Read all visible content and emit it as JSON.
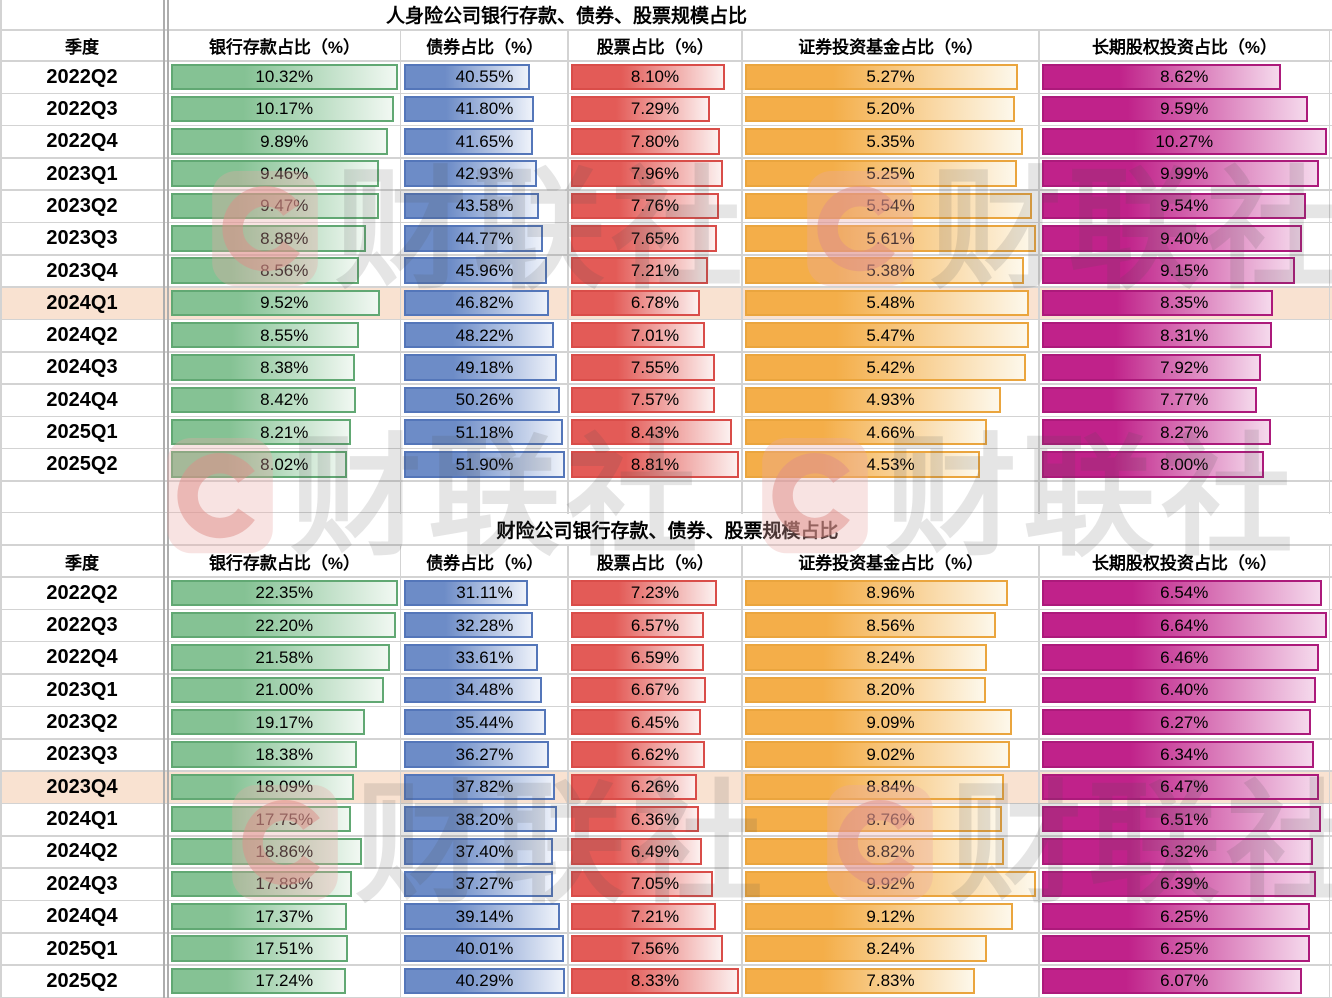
{
  "watermark": {
    "logo_letter": "C",
    "brand": "财联社"
  },
  "styles": {
    "highlight_color": "#f9e2d1",
    "grid_color": "#d3d3d3",
    "pane_divider_color": "#adadad",
    "bar_palettes": [
      {
        "name": "green",
        "border": "#61a873",
        "from": "#85c294",
        "to": "#f1f8f2"
      },
      {
        "name": "blue",
        "border": "#5476b9",
        "from": "#6d8cc7",
        "to": "#eef2fa"
      },
      {
        "name": "red",
        "border": "#d94d49",
        "from": "#e35b57",
        "to": "#fcf0ef"
      },
      {
        "name": "orange",
        "border": "#eaa53e",
        "from": "#f4ae49",
        "to": "#fdf8eb"
      },
      {
        "name": "magenta",
        "border": "#ac1a7b",
        "from": "#c0228a",
        "to": "#f5d9ec"
      }
    ]
  },
  "chart_data": [
    {
      "type": "table",
      "title": "人身险公司银行存款、债券、股票规模占比",
      "columns": [
        "季度",
        "银行存款占比（%）",
        "债券占比（%）",
        "股票占比（%）",
        "证券投资基金占比（%）",
        "长期股权投资占比（%）"
      ],
      "value_unit": "%",
      "bar_scaling": "data bar width proportional to value / column maximum",
      "highlighted_quarter": "2024Q1",
      "rows": [
        {
          "quarter": "2022Q2",
          "values": [
            10.32,
            40.55,
            8.1,
            5.27,
            8.62
          ]
        },
        {
          "quarter": "2022Q3",
          "values": [
            10.17,
            41.8,
            7.29,
            5.2,
            9.59
          ]
        },
        {
          "quarter": "2022Q4",
          "values": [
            9.89,
            41.65,
            7.8,
            5.35,
            10.27
          ]
        },
        {
          "quarter": "2023Q1",
          "values": [
            9.46,
            42.93,
            7.96,
            5.25,
            9.99
          ]
        },
        {
          "quarter": "2023Q2",
          "values": [
            9.47,
            43.58,
            7.76,
            5.54,
            9.54
          ]
        },
        {
          "quarter": "2023Q3",
          "values": [
            8.88,
            44.77,
            7.65,
            5.61,
            9.4
          ]
        },
        {
          "quarter": "2023Q4",
          "values": [
            8.56,
            45.96,
            7.21,
            5.38,
            9.15
          ]
        },
        {
          "quarter": "2024Q1",
          "values": [
            9.52,
            46.82,
            6.78,
            5.48,
            8.35
          ]
        },
        {
          "quarter": "2024Q2",
          "values": [
            8.55,
            48.22,
            7.01,
            5.47,
            8.31
          ]
        },
        {
          "quarter": "2024Q3",
          "values": [
            8.38,
            49.18,
            7.55,
            5.42,
            7.92
          ]
        },
        {
          "quarter": "2024Q4",
          "values": [
            8.42,
            50.26,
            7.57,
            4.93,
            7.77
          ]
        },
        {
          "quarter": "2025Q1",
          "values": [
            8.21,
            51.18,
            8.43,
            4.66,
            8.27
          ]
        },
        {
          "quarter": "2025Q2",
          "values": [
            8.02,
            51.9,
            8.81,
            4.53,
            8.0
          ]
        }
      ]
    },
    {
      "type": "table",
      "title": "财险公司银行存款、债券、股票规模占比",
      "columns": [
        "季度",
        "银行存款占比（%）",
        "债券占比（%）",
        "股票占比（%）",
        "证券投资基金占比（%）",
        "长期股权投资占比（%）"
      ],
      "value_unit": "%",
      "bar_scaling": "data bar width proportional to value / column maximum",
      "highlighted_quarter": "2023Q4",
      "rows": [
        {
          "quarter": "2022Q2",
          "values": [
            22.35,
            31.11,
            7.23,
            8.96,
            6.54
          ]
        },
        {
          "quarter": "2022Q3",
          "values": [
            22.2,
            32.28,
            6.57,
            8.56,
            6.64
          ]
        },
        {
          "quarter": "2022Q4",
          "values": [
            21.58,
            33.61,
            6.59,
            8.24,
            6.46
          ]
        },
        {
          "quarter": "2023Q1",
          "values": [
            21.0,
            34.48,
            6.67,
            8.2,
            6.4
          ]
        },
        {
          "quarter": "2023Q2",
          "values": [
            19.17,
            35.44,
            6.45,
            9.09,
            6.27
          ]
        },
        {
          "quarter": "2023Q3",
          "values": [
            18.38,
            36.27,
            6.62,
            9.02,
            6.34
          ]
        },
        {
          "quarter": "2023Q4",
          "values": [
            18.09,
            37.82,
            6.26,
            8.84,
            6.47
          ]
        },
        {
          "quarter": "2024Q1",
          "values": [
            17.75,
            38.2,
            6.36,
            8.76,
            6.51
          ]
        },
        {
          "quarter": "2024Q2",
          "values": [
            18.86,
            37.4,
            6.49,
            8.82,
            6.32
          ]
        },
        {
          "quarter": "2024Q3",
          "values": [
            17.88,
            37.27,
            7.05,
            9.92,
            6.39
          ]
        },
        {
          "quarter": "2024Q4",
          "values": [
            17.37,
            39.14,
            7.21,
            9.12,
            6.25
          ]
        },
        {
          "quarter": "2025Q1",
          "values": [
            17.51,
            40.01,
            7.56,
            8.24,
            6.25
          ]
        },
        {
          "quarter": "2025Q2",
          "values": [
            17.24,
            40.29,
            8.33,
            7.83,
            6.07
          ]
        }
      ]
    }
  ]
}
